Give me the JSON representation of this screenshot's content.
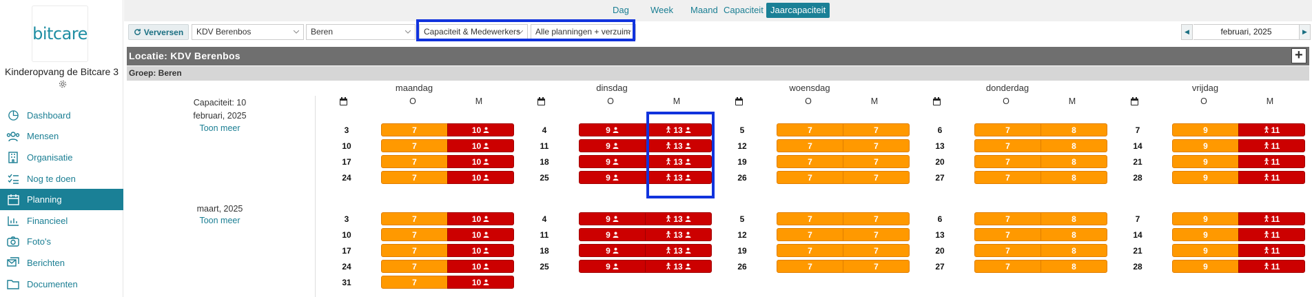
{
  "sidebar": {
    "logo_text": "bitcare",
    "org_name": "Kinderopvang de Bitcare 3",
    "org_icon": "gear-icon",
    "items": [
      {
        "label": "Dashboard",
        "icon": "pie-chart-icon",
        "active": false
      },
      {
        "label": "Mensen",
        "icon": "people-icon",
        "active": false
      },
      {
        "label": "Organisatie",
        "icon": "building-icon",
        "active": false
      },
      {
        "label": "Nog te doen",
        "icon": "checklist-icon",
        "active": false
      },
      {
        "label": "Planning",
        "icon": "calendar-icon",
        "active": true
      },
      {
        "label": "Financieel",
        "icon": "bar-chart-icon",
        "active": false
      },
      {
        "label": "Foto's",
        "icon": "camera-icon",
        "active": false
      },
      {
        "label": "Berichten",
        "icon": "messages-icon",
        "active": false
      },
      {
        "label": "Documenten",
        "icon": "folder-icon",
        "active": false
      }
    ]
  },
  "view_tabs": [
    {
      "label": "Dag",
      "active": false
    },
    {
      "label": "Week",
      "active": false
    },
    {
      "label": "Maand",
      "active": false
    },
    {
      "label": "Capaciteit",
      "active": false
    },
    {
      "label": "Jaarcapaciteit",
      "active": true
    }
  ],
  "toolbar": {
    "refresh_label": "Verversen",
    "location_select": "KDV Berenbos",
    "group_select": "Beren",
    "mode_select": "Capaciteit & Medewerkers",
    "planning_select": "Alle planningen + verzuim",
    "month_value": "februari, 2025",
    "prev_icon": "chevron-left-icon",
    "next_icon": "chevron-right-icon"
  },
  "location": {
    "title": "Locatie: KDV Berenbos",
    "add_icon": "plus-icon"
  },
  "group": {
    "title": "Groep: Beren"
  },
  "days": [
    "maandag",
    "dinsdag",
    "woensdag",
    "donderdag",
    "vrijdag"
  ],
  "dayparts": [
    "O",
    "M"
  ],
  "colors": {
    "orange": "#ff9900",
    "red": "#cc0000",
    "accent": "#1a8096",
    "highlight": "#1133dd"
  },
  "months": [
    {
      "label": "Capaciteit: 10 februari, 2025",
      "toon": "Toon meer",
      "rows": [
        {
          "dates": [
            "3",
            "4",
            "5",
            "6",
            "7"
          ]
        },
        {
          "dates": [
            "10",
            "11",
            "12",
            "13",
            "14"
          ]
        },
        {
          "dates": [
            "17",
            "18",
            "19",
            "20",
            "21"
          ]
        },
        {
          "dates": [
            "24",
            "25",
            "26",
            "27",
            "28"
          ]
        }
      ]
    },
    {
      "label": "maart, 2025",
      "toon": "Toon meer",
      "rows": [
        {
          "dates": [
            "3",
            "4",
            "5",
            "6",
            "7"
          ]
        },
        {
          "dates": [
            "10",
            "11",
            "12",
            "13",
            "14"
          ]
        },
        {
          "dates": [
            "17",
            "18",
            "19",
            "20",
            "21"
          ]
        },
        {
          "dates": [
            "24",
            "25",
            "26",
            "27",
            "28"
          ]
        },
        {
          "dates": [
            "31",
            "",
            "",
            "",
            ""
          ]
        }
      ]
    }
  ],
  "cell_pattern": [
    {
      "O": {
        "text": "7",
        "status": "orange",
        "user": false,
        "child": false
      },
      "M": {
        "text": "10",
        "status": "red",
        "user": true,
        "child": false
      }
    },
    {
      "O": {
        "text": "9",
        "status": "red",
        "user": true,
        "child": false
      },
      "M": {
        "text": "13",
        "status": "red",
        "user": true,
        "child": true
      }
    },
    {
      "O": {
        "text": "7",
        "status": "orange",
        "user": false,
        "child": false
      },
      "M": {
        "text": "7",
        "status": "orange",
        "user": false,
        "child": false
      }
    },
    {
      "O": {
        "text": "7",
        "status": "orange",
        "user": false,
        "child": false
      },
      "M": {
        "text": "8",
        "status": "orange",
        "user": false,
        "child": false
      }
    },
    {
      "O": {
        "text": "9",
        "status": "orange",
        "user": false,
        "child": false
      },
      "M": {
        "text": "11",
        "status": "red",
        "user": false,
        "child": true
      }
    }
  ]
}
